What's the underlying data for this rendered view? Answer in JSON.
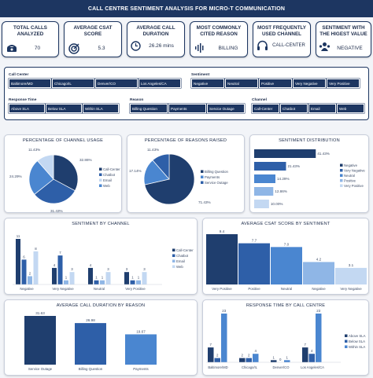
{
  "header": {
    "title": "CALL CENTRE SENTIMENT ANALYSIS FOR MICRO-T COMMUNICATION"
  },
  "kpis": [
    {
      "title": "TOTAL CALLS ANALYZED",
      "value": "70",
      "icon": "phone-icon"
    },
    {
      "title": "AVERAGE CSAT SCORE",
      "value": "5.3",
      "icon": "target-icon"
    },
    {
      "title": "AVERAGE CALL DURATION",
      "value": "26.26 mins",
      "icon": "clock-icon"
    },
    {
      "title": "MOST COMMONLY CITED REASON",
      "value": "BILLING",
      "icon": "soundwave-icon"
    },
    {
      "title": "MOST FREQUENTLY USED CHANNEL",
      "value": "CALL-CENTER",
      "icon": "headset-icon"
    },
    {
      "title": "SENTIMENT WITH THE HIGEST VALUE",
      "value": "NEGATIVE",
      "icon": "people-icon"
    }
  ],
  "slicers": {
    "call_center": {
      "label": "Call Center",
      "items": [
        "Baltimore/MD",
        "Chicago/IL",
        "Denver/CO",
        "Los Angeles/CA"
      ]
    },
    "sentiment": {
      "label": "Sentiment",
      "items": [
        "Negative",
        "Neutral",
        "Positive",
        "Very Negative",
        "Very Positive"
      ]
    },
    "response_time": {
      "label": "Response Time",
      "items": [
        "Above SLA",
        "Below SLA",
        "Within SLA"
      ]
    },
    "reason": {
      "label": "Reason",
      "items": [
        "Billing Question",
        "Payments",
        "Service Outage"
      ]
    },
    "channel": {
      "label": "Channel",
      "items": [
        "Call-Center",
        "Chatbot",
        "Email",
        "Web"
      ]
    }
  },
  "colors": {
    "navy": "#1d3661",
    "dark": "#1f3e6e",
    "mid": "#2e5fa8",
    "blue": "#4a86d0",
    "light": "#8fb6e6",
    "pale": "#c3d8f2"
  },
  "chart_data": [
    {
      "type": "pie",
      "title": "PERCENTAGE OF CHANNEL USAGE",
      "labels": [
        "Call-Center",
        "Chatbot",
        "Web",
        "Email"
      ],
      "values": [
        32.86,
        31.43,
        24.29,
        11.43
      ],
      "data_labels": [
        "32.86%",
        "31.43%",
        "24.29%",
        "11.43%"
      ]
    },
    {
      "type": "pie",
      "title": "PERCENTAGE OF REASONS RAISED",
      "labels": [
        "Billing Question",
        "Payments",
        "Service Outage"
      ],
      "values": [
        71.43,
        17.14,
        11.43
      ],
      "data_labels": [
        "71.43%",
        "17.14%",
        "11.43%"
      ]
    },
    {
      "type": "bar",
      "title": "SENTIMENT DISTRIBUTION",
      "categories": [
        "Negative",
        "Very Negative",
        "Neutral",
        "Positive",
        "Very Positive"
      ],
      "values": [
        41.43,
        21.43,
        14.29,
        12.86,
        10.0
      ],
      "data_labels": [
        "41.43%",
        "21.43%",
        "14.29%",
        "12.86%",
        "10.00%"
      ]
    },
    {
      "type": "bar",
      "title": "SENTIMENT BY CHANNEL",
      "categories": [
        "Negative",
        "Very Negative",
        "Neutral",
        "Very Positive"
      ],
      "series": [
        {
          "name": "Call-Center",
          "values": [
            11,
            4,
            4,
            3
          ]
        },
        {
          "name": "Chatbot",
          "values": [
            6,
            7,
            1,
            1
          ]
        },
        {
          "name": "Email",
          "values": [
            2,
            1,
            1,
            1
          ]
        },
        {
          "name": "Web",
          "values": [
            8,
            3,
            3,
            3
          ]
        }
      ]
    },
    {
      "type": "bar",
      "title": "AVERAGE CSAT SCORE BY SENTIMENT",
      "categories": [
        "Very Positive",
        "Positive",
        "Neutral",
        "Negative",
        "Very Negative"
      ],
      "values": [
        9.4,
        7.7,
        7.0,
        4.2,
        3.1
      ]
    },
    {
      "type": "bar",
      "title": "AVERAGE CALL DURATION BY REASON",
      "categories": [
        "Service Outage",
        "Billing Question",
        "Payments"
      ],
      "values": [
        31.63,
        26.98,
        19.67
      ]
    },
    {
      "type": "bar",
      "title": "RESPONSE TIME BY CALL CENTRE",
      "categories": [
        "Baltimore/MD",
        "Chicago/IL",
        "Denver/CO",
        "Los Angeles/CA"
      ],
      "series": [
        {
          "name": "Above SLA",
          "values": [
            7,
            2,
            1,
            7
          ]
        },
        {
          "name": "Below SLA",
          "values": [
            2,
            2,
            0,
            4
          ]
        },
        {
          "name": "Within SLA",
          "values": [
            23,
            4,
            1,
            23
          ]
        }
      ]
    }
  ]
}
